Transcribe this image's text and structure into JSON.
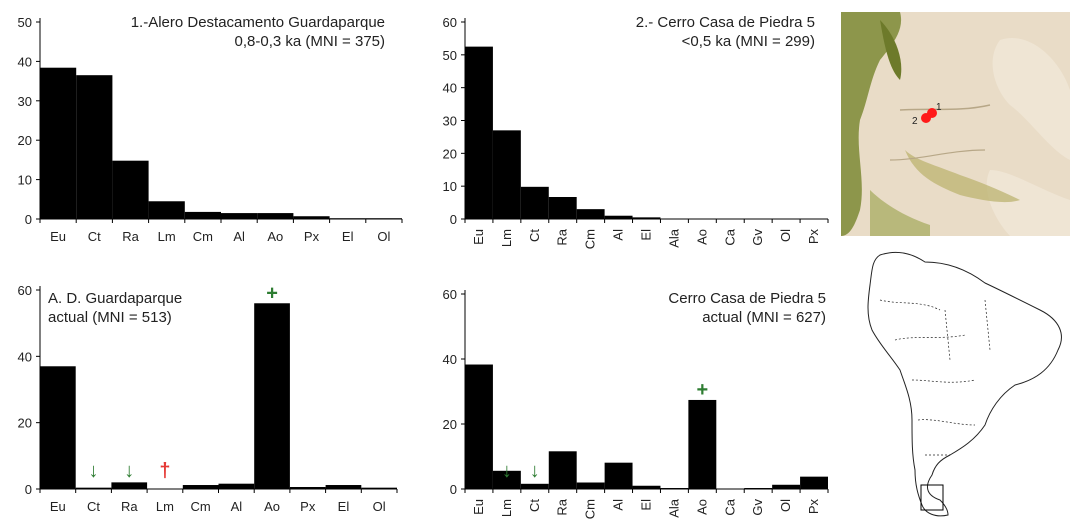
{
  "colors": {
    "bar": "#000000",
    "axis": "#000000",
    "increase": "#2e7d32",
    "decrease": "#2e7d32",
    "extinct": "#e53935",
    "site": "#ff1a1a",
    "map_land": "#d8c8ad",
    "map_veg": "#8a8f3c"
  },
  "chart_data": [
    {
      "type": "bar",
      "title": "1.-Alero Destacamento Guardaparque",
      "subtitle": "0,8-0,3 ka (MNI = 375)",
      "categories": [
        "Eu",
        "Ct",
        "Ra",
        "Lm",
        "Cm",
        "Al",
        "Ao",
        "Px",
        "El",
        "Ol"
      ],
      "values": [
        38.4,
        36.5,
        14.8,
        4.5,
        1.8,
        1.5,
        1.5,
        0.7,
        0.2,
        0.2
      ],
      "ylim": [
        0,
        50
      ],
      "yticks": [
        0,
        10,
        20,
        30,
        40,
        50
      ],
      "xlabel_rotated": false,
      "markers": []
    },
    {
      "type": "bar",
      "title": "2.- Cerro Casa de Piedra 5",
      "subtitle": "<0,5 ka (MNI = 299)",
      "categories": [
        "Eu",
        "Lm",
        "Ct",
        "Ra",
        "Cm",
        "Al",
        "El",
        "Ala",
        "Ao",
        "Ca",
        "Gv",
        "Ol",
        "Px"
      ],
      "values": [
        52.5,
        27,
        9.8,
        6.7,
        3.0,
        1.0,
        0.5,
        0,
        0,
        0,
        0,
        0,
        0
      ],
      "ylim": [
        0,
        60
      ],
      "yticks": [
        0,
        10,
        20,
        30,
        40,
        50,
        60
      ],
      "xlabel_rotated": true,
      "markers": []
    },
    {
      "type": "bar",
      "title": "A. D. Guardaparque",
      "subtitle": "actual (MNI = 513)",
      "title_align": "left",
      "categories": [
        "Eu",
        "Ct",
        "Ra",
        "Lm",
        "Cm",
        "Al",
        "Ao",
        "Px",
        "El",
        "Ol"
      ],
      "values": [
        37,
        0.4,
        2,
        0,
        1.2,
        1.6,
        56,
        0.6,
        1.2,
        0.4
      ],
      "ylim": [
        0,
        60
      ],
      "yticks": [
        0,
        20,
        40,
        60
      ],
      "xlabel_rotated": false,
      "markers": [
        {
          "category": "Ct",
          "symbol": "↓",
          "kind": "decrease"
        },
        {
          "category": "Ra",
          "symbol": "↓",
          "kind": "decrease"
        },
        {
          "category": "Lm",
          "symbol": "†",
          "kind": "extinct"
        },
        {
          "category": "Ao",
          "symbol": "+",
          "kind": "increase"
        }
      ]
    },
    {
      "type": "bar",
      "title": "Cerro Casa de Piedra 5",
      "subtitle": "actual (MNI = 627)",
      "categories": [
        "Eu",
        "Lm",
        "Ct",
        "Ra",
        "Cm",
        "Al",
        "El",
        "Ala",
        "Ao",
        "Ca",
        "Gv",
        "Ol",
        "Px"
      ],
      "values": [
        38.3,
        5.6,
        1.6,
        11.6,
        2.0,
        8.1,
        1.0,
        0.3,
        27.4,
        0,
        0.3,
        1.3,
        3.8
      ],
      "ylim": [
        0,
        60
      ],
      "yticks": [
        0,
        20,
        40,
        60
      ],
      "xlabel_rotated": true,
      "markers": [
        {
          "category": "Lm",
          "symbol": "↓",
          "kind": "decrease"
        },
        {
          "category": "Ct",
          "symbol": "↓",
          "kind": "decrease"
        },
        {
          "category": "Ao",
          "symbol": "+",
          "kind": "increase"
        }
      ]
    }
  ],
  "site_map": {
    "site_labels": [
      "1",
      "2"
    ]
  }
}
